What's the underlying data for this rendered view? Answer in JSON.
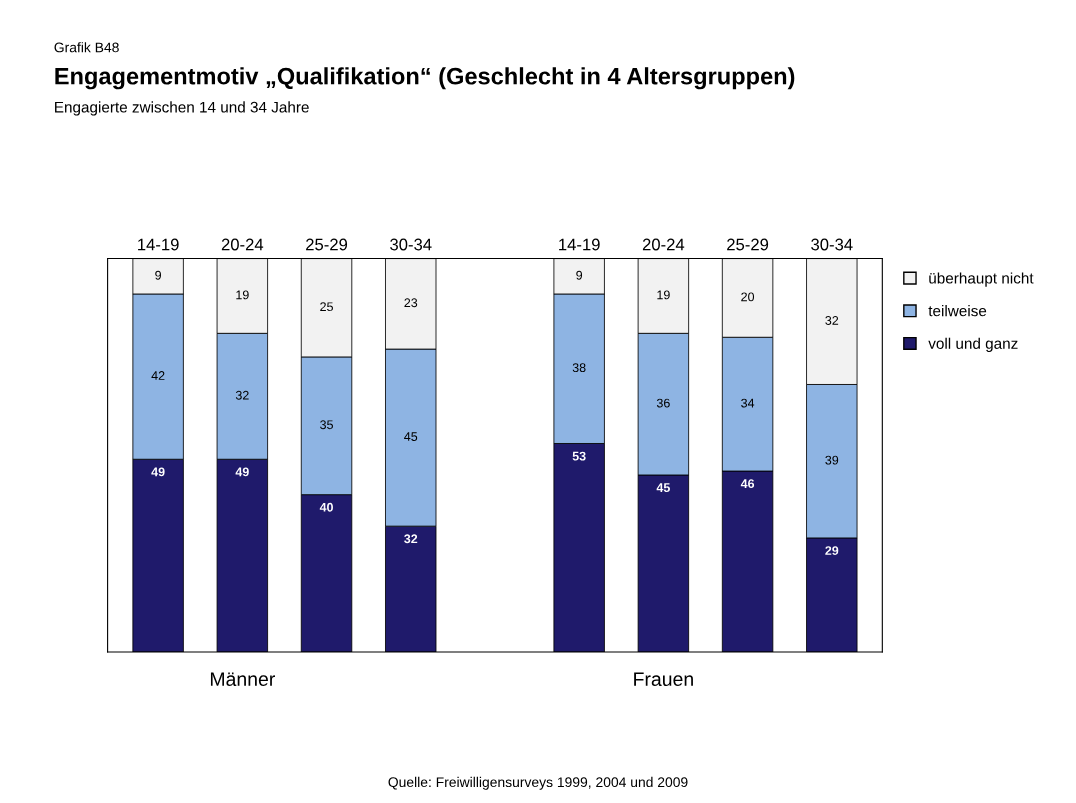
{
  "chart_data": {
    "type": "bar",
    "title": "Engagementmotiv „Qualifikation“ (Geschlecht in 4 Altersgruppen)",
    "subtitle": "Engagierte zwischen 14 und 34 Jahre",
    "annotations": [
      "Grafik B48",
      "Männer",
      "Frauen",
      "Quelle: Freiwilligensurveys 1999, 2004 und 2009"
    ],
    "categories": [
      "14-19",
      "20-24",
      "25-29",
      "30-34",
      null,
      "14-19",
      "20-24",
      "25-29",
      "30-34"
    ],
    "stacked": true,
    "data_labels": true,
    "legend": "right",
    "tick_labels": "x",
    "series": [
      {
        "name": "voll und ganz",
        "color": "#1f1a6b",
        "values": [
          49,
          49,
          40,
          32,
          null,
          53,
          45,
          46,
          29
        ]
      },
      {
        "name": "teilweise",
        "color": "#8eb4e3",
        "values": [
          42,
          32,
          35,
          45,
          null,
          38,
          36,
          34,
          39
        ]
      },
      {
        "name": "überhaupt nicht",
        "color": "#f2f2f2",
        "values": [
          9,
          19,
          25,
          23,
          null,
          9,
          19,
          20,
          32
        ]
      }
    ]
  }
}
